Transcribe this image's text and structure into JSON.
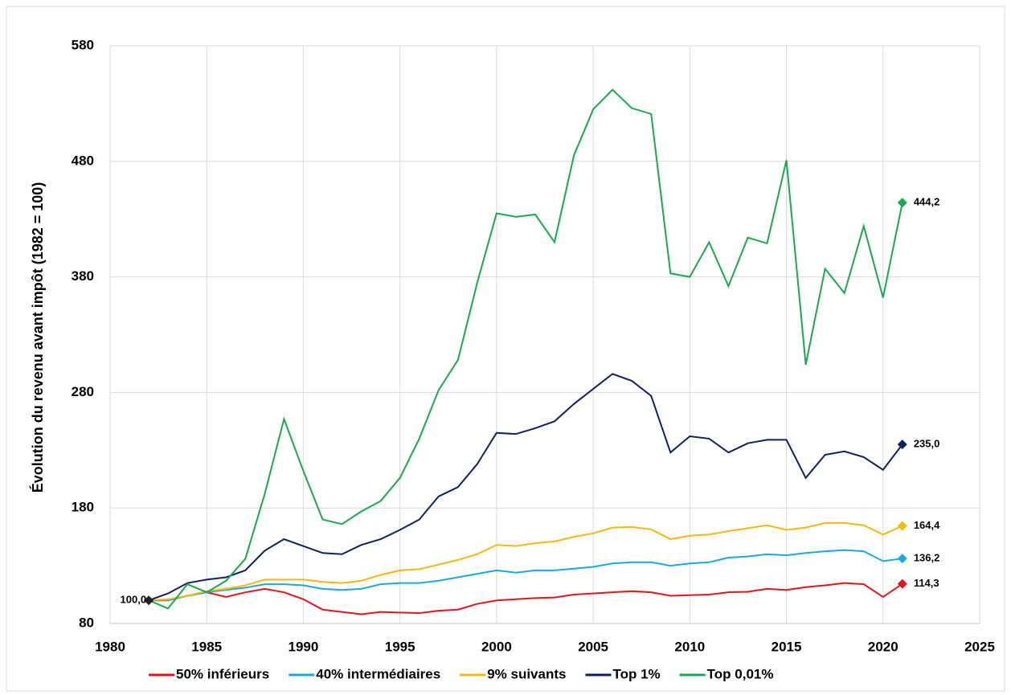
{
  "chart_data": {
    "type": "line",
    "y_label": "Évolution du revenu avant impôt (1982 = 100)",
    "x": [
      1982,
      1983,
      1984,
      1985,
      1986,
      1987,
      1988,
      1989,
      1990,
      1991,
      1992,
      1993,
      1994,
      1995,
      1996,
      1997,
      1998,
      1999,
      2000,
      2001,
      2002,
      2003,
      2004,
      2005,
      2006,
      2007,
      2008,
      2009,
      2010,
      2011,
      2012,
      2013,
      2014,
      2015,
      2016,
      2017,
      2018,
      2019,
      2020,
      2021
    ],
    "xlim": [
      1980,
      2025
    ],
    "xticks": [
      1980,
      1985,
      1990,
      1995,
      2000,
      2005,
      2010,
      2015,
      2020,
      2025
    ],
    "ylim": [
      80,
      580
    ],
    "yticks": [
      80,
      180,
      280,
      380,
      480,
      580
    ],
    "grid": true,
    "legend": "bottom",
    "series": [
      {
        "name": "50% inférieurs",
        "color": "#e5141a",
        "values": [
          100,
          100,
          104,
          107,
          103,
          107,
          110,
          107,
          101,
          92,
          90,
          88,
          90,
          89.5,
          89,
          91,
          92,
          97,
          100,
          101,
          102,
          102.5,
          105,
          106,
          107,
          108,
          107,
          104,
          104.5,
          105,
          107,
          107.5,
          110,
          109,
          111.5,
          113,
          115,
          114,
          103,
          114.3
        ],
        "value_labels": [
          null,
          null,
          null,
          null,
          null,
          null,
          null,
          null,
          null,
          null,
          null,
          null,
          null,
          null,
          null,
          null,
          null,
          null,
          null,
          null,
          null,
          null,
          null,
          null,
          null,
          null,
          null,
          null,
          null,
          null,
          null,
          null,
          null,
          null,
          null,
          null,
          null,
          null,
          null,
          "114,3"
        ]
      },
      {
        "name": "40% intermédiaires",
        "color": "#1ba9e0",
        "values": [
          100,
          100,
          104,
          107,
          109,
          111,
          114,
          114,
          113,
          110,
          109,
          110,
          114,
          115,
          115,
          117,
          120,
          123,
          126,
          124,
          126,
          126,
          127.5,
          129,
          132,
          133,
          133,
          130,
          132,
          133,
          137,
          138,
          140,
          139,
          141,
          142.5,
          143.5,
          142.5,
          134,
          136.2
        ],
        "value_labels": [
          null,
          null,
          null,
          null,
          null,
          null,
          null,
          null,
          null,
          null,
          null,
          null,
          null,
          null,
          null,
          null,
          null,
          null,
          null,
          null,
          null,
          null,
          null,
          null,
          null,
          null,
          null,
          null,
          null,
          null,
          null,
          null,
          null,
          null,
          null,
          null,
          null,
          null,
          null,
          "136,2"
        ]
      },
      {
        "name": "9% suivants",
        "color": "#f7b80b",
        "values": [
          100,
          101,
          104,
          108,
          110,
          113,
          118,
          118,
          118,
          116,
          115,
          117,
          122,
          126,
          127,
          131,
          135,
          140,
          148,
          147,
          149.5,
          151,
          155,
          158,
          163,
          163.5,
          161.5,
          153,
          156,
          157,
          160,
          162.5,
          165,
          161,
          163,
          167,
          167,
          165,
          157,
          164.4
        ],
        "value_labels": [
          null,
          null,
          null,
          null,
          null,
          null,
          null,
          null,
          null,
          null,
          null,
          null,
          null,
          null,
          null,
          null,
          null,
          null,
          null,
          null,
          null,
          null,
          null,
          null,
          null,
          null,
          null,
          null,
          null,
          null,
          null,
          null,
          null,
          null,
          null,
          null,
          null,
          null,
          null,
          "164,4"
        ]
      },
      {
        "name": "Top 1%",
        "color": "#0e2160",
        "values": [
          100,
          106,
          115,
          118,
          120,
          126,
          143,
          153,
          147,
          141,
          140,
          148,
          153,
          161,
          170,
          190,
          198,
          218,
          245,
          244,
          249,
          255,
          270,
          283,
          296,
          290,
          277,
          228,
          242,
          240,
          228,
          236,
          239,
          239,
          206,
          226,
          229,
          224,
          213,
          235
        ],
        "value_labels": [
          "100,0",
          null,
          null,
          null,
          null,
          null,
          null,
          null,
          null,
          null,
          null,
          null,
          null,
          null,
          null,
          null,
          null,
          null,
          null,
          null,
          null,
          null,
          null,
          null,
          null,
          null,
          null,
          null,
          null,
          null,
          null,
          null,
          null,
          null,
          null,
          null,
          null,
          null,
          null,
          "235,0"
        ]
      },
      {
        "name": "Top 0,01%",
        "color": "#1aa850",
        "values": [
          100,
          93,
          114,
          107,
          117,
          136,
          192,
          257,
          212,
          170,
          166,
          177,
          186,
          206,
          240,
          282,
          308,
          375,
          435,
          432,
          434,
          410,
          485,
          525,
          542,
          526,
          521,
          383,
          380,
          410,
          372,
          414,
          409,
          481,
          304,
          387,
          366,
          424,
          362,
          444.2
        ],
        "value_labels": [
          null,
          null,
          null,
          null,
          null,
          null,
          null,
          null,
          null,
          null,
          null,
          null,
          null,
          null,
          null,
          null,
          null,
          null,
          null,
          null,
          null,
          null,
          null,
          null,
          null,
          null,
          null,
          null,
          null,
          null,
          null,
          null,
          null,
          null,
          null,
          null,
          null,
          null,
          null,
          "444,2"
        ]
      }
    ]
  }
}
